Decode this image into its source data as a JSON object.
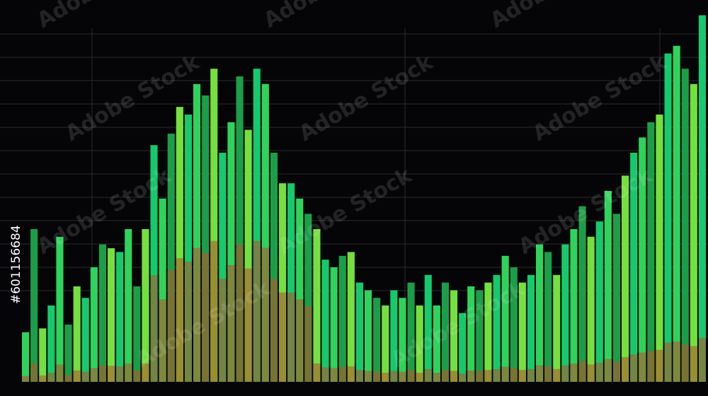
{
  "chart_data": {
    "type": "bar",
    "watermark": "Adobe Stock",
    "image_id": "#601156684",
    "values": [
      13,
      40,
      14,
      20,
      38,
      15,
      25,
      22,
      30,
      36,
      35,
      34,
      40,
      25,
      40,
      62,
      48,
      65,
      72,
      70,
      78,
      75,
      82,
      60,
      68,
      80,
      66,
      82,
      78,
      60,
      52,
      52,
      48,
      44,
      40,
      32,
      30,
      33,
      34,
      26,
      24,
      22,
      20,
      24,
      22,
      26,
      20,
      28,
      20,
      26,
      24,
      18,
      25,
      24,
      26,
      28,
      33,
      30,
      26,
      28,
      36,
      34,
      28,
      36,
      40,
      46,
      38,
      42,
      50,
      44,
      54,
      60,
      64,
      68,
      70,
      86,
      88,
      82,
      78,
      96
    ],
    "palette": [
      "#2fd35c",
      "#1c9e48",
      "#74e03e",
      "#16c96c"
    ],
    "base_color": "#b3572a",
    "ylim": [
      0,
      100
    ]
  }
}
